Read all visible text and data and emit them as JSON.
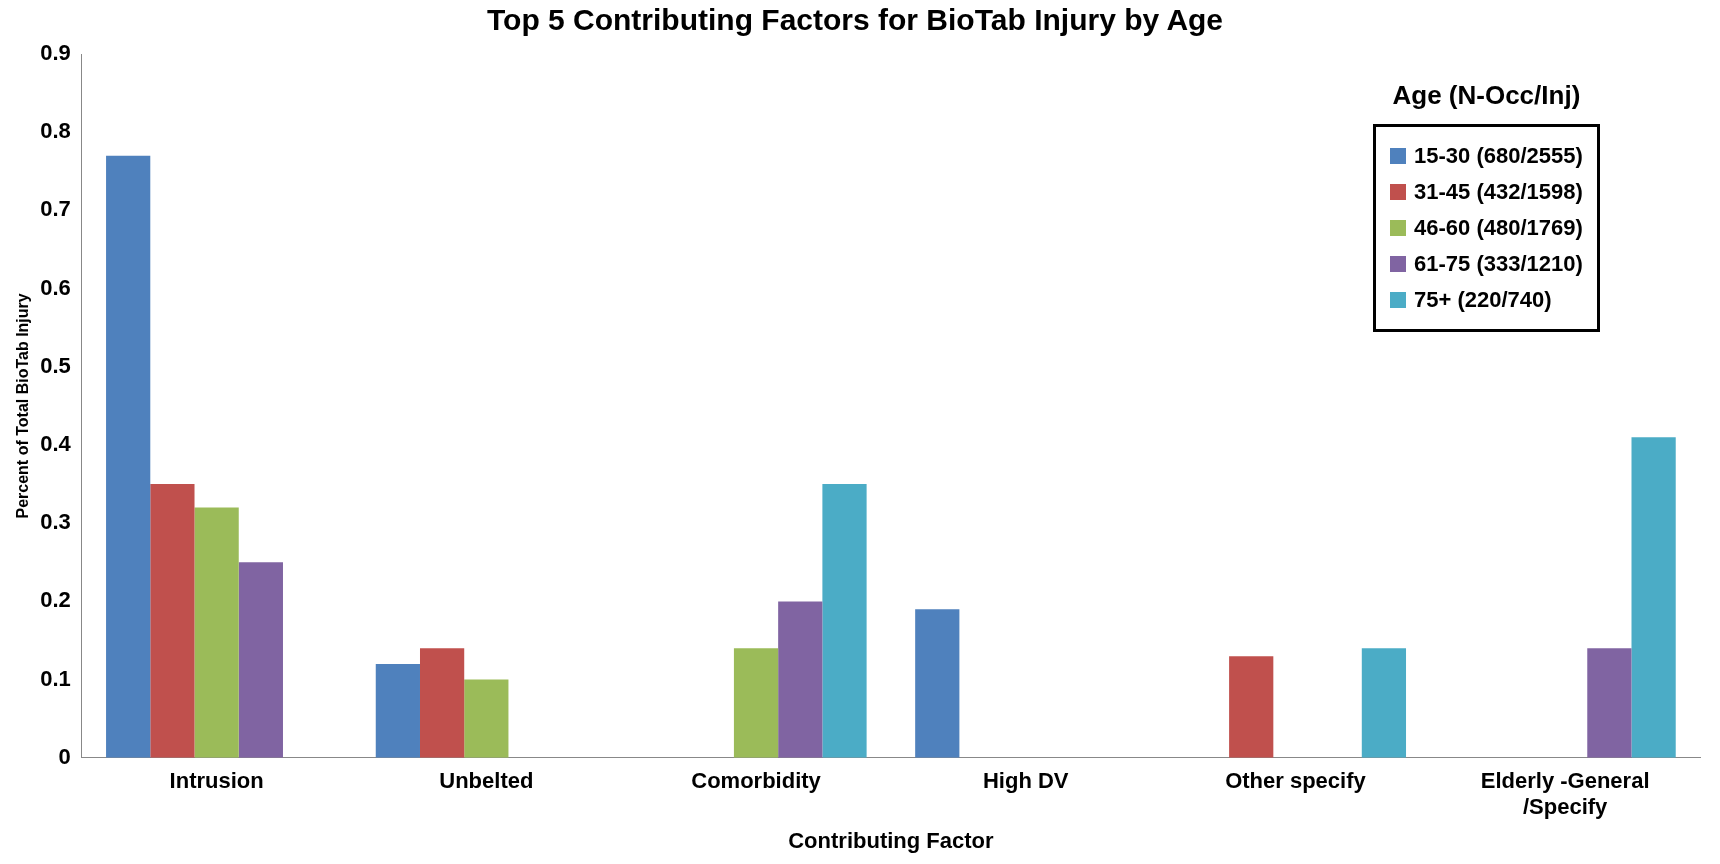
{
  "chart_data": {
    "type": "bar",
    "title": "Top 5 Contributing Factors for BioTab Injury by Age",
    "xlabel": "Contributing Factor",
    "ylabel": "Percent of Total BioTab Injury",
    "legend_title": "Age (N-Occ/Inj)",
    "legend": "top right",
    "grid": false,
    "categories": [
      "Intrusion",
      "Unbelted",
      "Comorbidity",
      "High DV",
      "Other specify",
      "Elderly -General /Specify"
    ],
    "ylim": [
      0,
      0.9
    ],
    "yticks": [
      0,
      0.1,
      0.2,
      0.3,
      0.4,
      0.5,
      0.6,
      0.7,
      0.8,
      0.9
    ],
    "series": [
      {
        "name": "15-30 (680/2555)",
        "color": "#4f81bd",
        "values": [
          0.77,
          0.12,
          null,
          0.19,
          null,
          null
        ]
      },
      {
        "name": "31-45 (432/1598)",
        "color": "#c0504d",
        "values": [
          0.35,
          0.14,
          null,
          null,
          0.13,
          null
        ]
      },
      {
        "name": "46-60 (480/1769)",
        "color": "#9bbb59",
        "values": [
          0.32,
          0.1,
          0.14,
          null,
          null,
          null
        ]
      },
      {
        "name": "61-75 (333/1210)",
        "color": "#8064a2",
        "values": [
          0.25,
          null,
          0.2,
          null,
          null,
          0.14
        ]
      },
      {
        "name": "75+ (220/740)",
        "color": "#4bacc6",
        "values": [
          null,
          null,
          0.35,
          null,
          0.14,
          0.41
        ]
      }
    ]
  }
}
